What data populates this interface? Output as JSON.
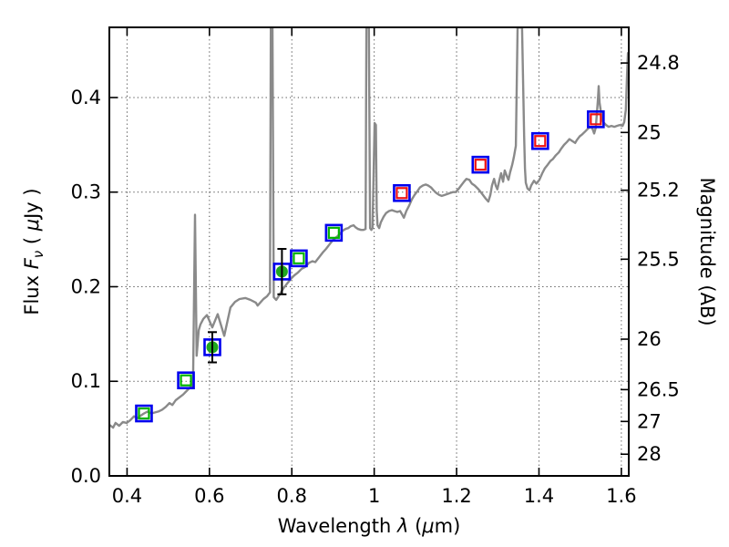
{
  "figure": {
    "background": "#ffffff"
  },
  "chart_data": {
    "type": "line+scatter",
    "title": "",
    "grid": "dotted on major ticks of bottom and left axes",
    "x_axis": {
      "label": "Wavelength λ (μm)",
      "label_parts": [
        "Wavelength ",
        "λ",
        " (",
        "μ",
        "m)"
      ],
      "range": [
        0.357,
        1.618
      ],
      "ticks": [
        0.4,
        0.6,
        0.8,
        1.0,
        1.2,
        1.4,
        1.6
      ],
      "tick_labels": [
        "0.4",
        "0.6",
        "0.8",
        "1",
        "1.2",
        "1.4",
        "1.6"
      ]
    },
    "y_left": {
      "label": "Flux Fν ( μJy )",
      "label_parts": [
        "Flux ",
        "F",
        "ν",
        " ( ",
        "μ",
        "Jy )"
      ],
      "range": [
        0,
        0.4742
      ],
      "ticks": [
        0.0,
        0.1,
        0.2,
        0.3,
        0.4
      ],
      "tick_labels": [
        "0.0",
        "0.1",
        "0.2",
        "0.3",
        "0.4"
      ]
    },
    "y_right": {
      "label": "Magnitude (AB)",
      "ticks_mag": [
        24.8,
        25,
        25.2,
        25.5,
        26,
        26.5,
        27,
        28
      ],
      "tick_labels": [
        "24.8",
        "25",
        "25.2",
        "25.5",
        "26",
        "26.5",
        "27",
        "28"
      ]
    },
    "colors": {
      "spectrum": "#8a8a8a",
      "blue_square": "#0000ee",
      "green_square": "#00b300",
      "red_square": "#ee1111",
      "green_circle": "#1fa81f",
      "error_bar": "#000000",
      "grid": "#444444",
      "spine": "#000000"
    },
    "marker_style": {
      "blue_square_size": 17,
      "blue_square_stroke": 2.6,
      "inner_square_size": 11,
      "inner_square_stroke": 2.2,
      "circle_radius": 6.5,
      "error_bar_stroke": 2,
      "error_cap_halfwidth": 5
    },
    "series": [
      {
        "name": "model-spectrum",
        "type": "line",
        "color_key": "spectrum",
        "linewidth": 2.4,
        "points": [
          [
            0.357,
            0.054
          ],
          [
            0.366,
            0.051
          ],
          [
            0.372,
            0.056
          ],
          [
            0.381,
            0.053
          ],
          [
            0.39,
            0.057
          ],
          [
            0.399,
            0.056
          ],
          [
            0.408,
            0.059
          ],
          [
            0.417,
            0.063
          ],
          [
            0.425,
            0.061
          ],
          [
            0.434,
            0.064
          ],
          [
            0.441,
            0.066
          ],
          [
            0.45,
            0.068
          ],
          [
            0.459,
            0.066
          ],
          [
            0.467,
            0.067
          ],
          [
            0.476,
            0.068
          ],
          [
            0.485,
            0.07
          ],
          [
            0.494,
            0.073
          ],
          [
            0.503,
            0.077
          ],
          [
            0.51,
            0.075
          ],
          [
            0.518,
            0.08
          ],
          [
            0.527,
            0.083
          ],
          [
            0.536,
            0.086
          ],
          [
            0.545,
            0.09
          ],
          [
            0.552,
            0.093
          ],
          [
            0.558,
            0.096
          ],
          [
            0.56,
            0.094
          ],
          [
            0.565,
            0.276
          ],
          [
            0.569,
            0.127
          ],
          [
            0.574,
            0.154
          ],
          [
            0.578,
            0.16
          ],
          [
            0.585,
            0.166
          ],
          [
            0.594,
            0.17
          ],
          [
            0.607,
            0.157
          ],
          [
            0.62,
            0.171
          ],
          [
            0.636,
            0.148
          ],
          [
            0.651,
            0.178
          ],
          [
            0.662,
            0.184
          ],
          [
            0.673,
            0.187
          ],
          [
            0.687,
            0.188
          ],
          [
            0.7,
            0.186
          ],
          [
            0.713,
            0.183
          ],
          [
            0.717,
            0.18
          ],
          [
            0.731,
            0.187
          ],
          [
            0.74,
            0.19
          ],
          [
            0.747,
            0.194
          ],
          [
            0.749,
            0.474
          ],
          [
            0.753,
            0.474
          ],
          [
            0.756,
            0.189
          ],
          [
            0.762,
            0.186
          ],
          [
            0.771,
            0.192
          ],
          [
            0.779,
            0.198
          ],
          [
            0.788,
            0.203
          ],
          [
            0.797,
            0.208
          ],
          [
            0.806,
            0.212
          ],
          [
            0.815,
            0.215
          ],
          [
            0.824,
            0.219
          ],
          [
            0.833,
            0.221
          ],
          [
            0.841,
            0.225
          ],
          [
            0.85,
            0.227
          ],
          [
            0.857,
            0.226
          ],
          [
            0.866,
            0.231
          ],
          [
            0.875,
            0.236
          ],
          [
            0.883,
            0.24
          ],
          [
            0.892,
            0.245
          ],
          [
            0.901,
            0.25
          ],
          [
            0.91,
            0.253
          ],
          [
            0.917,
            0.256
          ],
          [
            0.923,
            0.259
          ],
          [
            0.93,
            0.261
          ],
          [
            0.937,
            0.262
          ],
          [
            0.943,
            0.264
          ],
          [
            0.95,
            0.265
          ],
          [
            0.954,
            0.263
          ],
          [
            0.961,
            0.261
          ],
          [
            0.968,
            0.26
          ],
          [
            0.974,
            0.26
          ],
          [
            0.979,
            0.261
          ],
          [
            0.981,
            0.474
          ],
          [
            0.987,
            0.474
          ],
          [
            0.99,
            0.262
          ],
          [
            0.993,
            0.26
          ],
          [
            0.996,
            0.262
          ],
          [
            1.001,
            0.373
          ],
          [
            1.004,
            0.371
          ],
          [
            1.006,
            0.281
          ],
          [
            1.008,
            0.265
          ],
          [
            1.012,
            0.262
          ],
          [
            1.016,
            0.268
          ],
          [
            1.023,
            0.274
          ],
          [
            1.029,
            0.278
          ],
          [
            1.036,
            0.28
          ],
          [
            1.043,
            0.281
          ],
          [
            1.049,
            0.28
          ],
          [
            1.056,
            0.279
          ],
          [
            1.063,
            0.28
          ],
          [
            1.067,
            0.277
          ],
          [
            1.072,
            0.273
          ],
          [
            1.078,
            0.28
          ],
          [
            1.085,
            0.286
          ],
          [
            1.091,
            0.292
          ],
          [
            1.098,
            0.297
          ],
          [
            1.105,
            0.301
          ],
          [
            1.111,
            0.305
          ],
          [
            1.118,
            0.307
          ],
          [
            1.125,
            0.308
          ],
          [
            1.131,
            0.307
          ],
          [
            1.138,
            0.305
          ],
          [
            1.144,
            0.302
          ],
          [
            1.151,
            0.299
          ],
          [
            1.158,
            0.297
          ],
          [
            1.164,
            0.296
          ],
          [
            1.171,
            0.297
          ],
          [
            1.178,
            0.298
          ],
          [
            1.184,
            0.299
          ],
          [
            1.191,
            0.3
          ],
          [
            1.198,
            0.3
          ],
          [
            1.204,
            0.303
          ],
          [
            1.211,
            0.307
          ],
          [
            1.218,
            0.311
          ],
          [
            1.224,
            0.314
          ],
          [
            1.231,
            0.313
          ],
          [
            1.237,
            0.309
          ],
          [
            1.244,
            0.307
          ],
          [
            1.251,
            0.304
          ],
          [
            1.257,
            0.301
          ],
          [
            1.264,
            0.297
          ],
          [
            1.271,
            0.293
          ],
          [
            1.277,
            0.29
          ],
          [
            1.282,
            0.297
          ],
          [
            1.286,
            0.307
          ],
          [
            1.291,
            0.314
          ],
          [
            1.295,
            0.307
          ],
          [
            1.299,
            0.303
          ],
          [
            1.304,
            0.313
          ],
          [
            1.308,
            0.32
          ],
          [
            1.313,
            0.311
          ],
          [
            1.317,
            0.323
          ],
          [
            1.322,
            0.317
          ],
          [
            1.326,
            0.313
          ],
          [
            1.33,
            0.321
          ],
          [
            1.335,
            0.329
          ],
          [
            1.339,
            0.337
          ],
          [
            1.344,
            0.349
          ],
          [
            1.348,
            0.474
          ],
          [
            1.359,
            0.474
          ],
          [
            1.364,
            0.359
          ],
          [
            1.366,
            0.325
          ],
          [
            1.368,
            0.31
          ],
          [
            1.372,
            0.304
          ],
          [
            1.377,
            0.302
          ],
          [
            1.381,
            0.307
          ],
          [
            1.388,
            0.312
          ],
          [
            1.394,
            0.309
          ],
          [
            1.401,
            0.313
          ],
          [
            1.408,
            0.32
          ],
          [
            1.414,
            0.325
          ],
          [
            1.421,
            0.329
          ],
          [
            1.428,
            0.333
          ],
          [
            1.434,
            0.335
          ],
          [
            1.441,
            0.339
          ],
          [
            1.448,
            0.342
          ],
          [
            1.454,
            0.346
          ],
          [
            1.461,
            0.35
          ],
          [
            1.468,
            0.353
          ],
          [
            1.474,
            0.356
          ],
          [
            1.481,
            0.354
          ],
          [
            1.488,
            0.352
          ],
          [
            1.492,
            0.355
          ],
          [
            1.499,
            0.359
          ],
          [
            1.505,
            0.361
          ],
          [
            1.512,
            0.364
          ],
          [
            1.519,
            0.367
          ],
          [
            1.525,
            0.369
          ],
          [
            1.53,
            0.367
          ],
          [
            1.534,
            0.362
          ],
          [
            1.538,
            0.368
          ],
          [
            1.543,
            0.397
          ],
          [
            1.545,
            0.412
          ],
          [
            1.547,
            0.395
          ],
          [
            1.552,
            0.38
          ],
          [
            1.556,
            0.374
          ],
          [
            1.563,
            0.371
          ],
          [
            1.569,
            0.369
          ],
          [
            1.576,
            0.37
          ],
          [
            1.583,
            0.369
          ],
          [
            1.589,
            0.37
          ],
          [
            1.596,
            0.371
          ],
          [
            1.603,
            0.37
          ],
          [
            1.607,
            0.374
          ],
          [
            1.611,
            0.387
          ],
          [
            1.614,
            0.426
          ],
          [
            1.616,
            0.447
          ],
          [
            1.618,
            0.443
          ]
        ]
      },
      {
        "name": "photometry-blue-squares",
        "type": "scatter",
        "marker": "open-square",
        "color_key": "blue_square",
        "size_key": "blue_square_size",
        "stroke_key": "blue_square_stroke",
        "points": [
          [
            0.441,
            0.066
          ],
          [
            0.543,
            0.101
          ],
          [
            0.607,
            0.136
          ],
          [
            0.776,
            0.216
          ],
          [
            0.817,
            0.23
          ],
          [
            0.902,
            0.257
          ],
          [
            1.067,
            0.299
          ],
          [
            1.258,
            0.329
          ],
          [
            1.403,
            0.354
          ],
          [
            1.538,
            0.377
          ]
        ]
      },
      {
        "name": "photometry-green-squares",
        "type": "scatter",
        "marker": "open-square",
        "color_key": "green_square",
        "size_key": "inner_square_size",
        "stroke_key": "inner_square_stroke",
        "points": [
          [
            0.441,
            0.066
          ],
          [
            0.543,
            0.101
          ],
          [
            0.817,
            0.23
          ],
          [
            0.902,
            0.257
          ]
        ]
      },
      {
        "name": "photometry-red-squares",
        "type": "scatter",
        "marker": "open-square",
        "color_key": "red_square",
        "size_key": "inner_square_size",
        "stroke_key": "inner_square_stroke",
        "points": [
          [
            1.067,
            0.299
          ],
          [
            1.258,
            0.329
          ],
          [
            1.403,
            0.354
          ],
          [
            1.538,
            0.377
          ]
        ]
      },
      {
        "name": "observed-green-circles",
        "type": "scatter",
        "marker": "filled-circle-with-errorbar",
        "color_key": "green_circle",
        "points_err": [
          [
            0.607,
            0.136,
            0.016
          ],
          [
            0.776,
            0.216,
            0.024
          ]
        ]
      }
    ]
  }
}
